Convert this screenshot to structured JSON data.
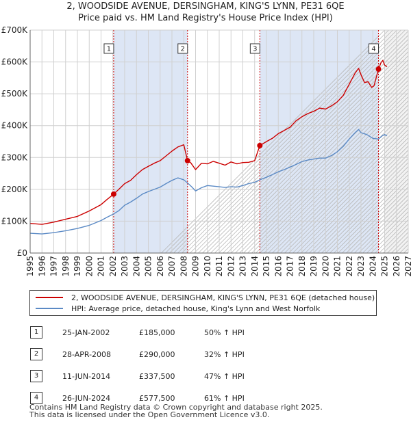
{
  "title_line1": "2, WOODSIDE AVENUE, DERSINGHAM, KING'S LYNN, PE31 6QE",
  "title_line2": "Price paid vs. HM Land Registry's House Price Index (HPI)",
  "legend": {
    "property": "2, WOODSIDE AVENUE, DERSINGHAM, KING'S LYNN, PE31 6QE (detached house)",
    "hpi": "HPI: Average price, detached house, King's Lynn and West Norfolk"
  },
  "transactions": [
    {
      "n": "1",
      "date": "25-JAN-2002",
      "price": "£185,000",
      "hpi": "50% ↑ HPI"
    },
    {
      "n": "2",
      "date": "28-APR-2008",
      "price": "£290,000",
      "hpi": "32% ↑ HPI"
    },
    {
      "n": "3",
      "date": "11-JUN-2014",
      "price": "£337,500",
      "hpi": "47% ↑ HPI"
    },
    {
      "n": "4",
      "date": "26-JUN-2024",
      "price": "£577,500",
      "hpi": "61% ↑ HPI"
    }
  ],
  "footer": {
    "line1": "Contains HM Land Registry data © Crown copyright and database right 2025.",
    "line2": "This data is licensed under the Open Government Licence v3.0."
  },
  "colors": {
    "property": "#cc0000",
    "hpi": "#5b8ac5",
    "shade": "#dde6f5",
    "grid": "#d0d0d0"
  },
  "chart_data": {
    "type": "line",
    "x_range": [
      1995,
      2027
    ],
    "y_range": [
      0,
      700000
    ],
    "x_ticks": [
      "1995",
      "1996",
      "1997",
      "1998",
      "1999",
      "2000",
      "2001",
      "2002",
      "2003",
      "2004",
      "2005",
      "2006",
      "2007",
      "2008",
      "2009",
      "2010",
      "2011",
      "2012",
      "2013",
      "2014",
      "2015",
      "2016",
      "2017",
      "2018",
      "2019",
      "2020",
      "2021",
      "2022",
      "2023",
      "2024",
      "2025",
      "2026",
      "2027"
    ],
    "y_ticks": [
      {
        "value": 0,
        "label": "£0"
      },
      {
        "value": 100000,
        "label": "£100K"
      },
      {
        "value": 200000,
        "label": "£200K"
      },
      {
        "value": 300000,
        "label": "£300K"
      },
      {
        "value": 400000,
        "label": "£400K"
      },
      {
        "value": 500000,
        "label": "£500K"
      },
      {
        "value": 600000,
        "label": "£600K"
      },
      {
        "value": 700000,
        "label": "£700K"
      }
    ],
    "forecast_from": 2025.0,
    "shaded_ranges": [
      [
        2002.07,
        2008.32
      ],
      [
        2014.44,
        2024.48
      ]
    ],
    "series": [
      {
        "name": "2, WOODSIDE AVENUE, DERSINGHAM, KING'S LYNN, PE31 6QE (detached house)",
        "color": "#cc0000",
        "points": [
          [
            1995.0,
            93000
          ],
          [
            1996.0,
            90000
          ],
          [
            1997.0,
            97000
          ],
          [
            1998.0,
            106000
          ],
          [
            1999.0,
            115000
          ],
          [
            2000.0,
            132000
          ],
          [
            2001.0,
            152000
          ],
          [
            2001.5,
            168000
          ],
          [
            2002.07,
            185000
          ],
          [
            2002.5,
            200000
          ],
          [
            2003.0,
            218000
          ],
          [
            2003.5,
            228000
          ],
          [
            2004.0,
            246000
          ],
          [
            2004.5,
            262000
          ],
          [
            2005.0,
            272000
          ],
          [
            2005.5,
            282000
          ],
          [
            2006.0,
            290000
          ],
          [
            2006.5,
            305000
          ],
          [
            2007.0,
            320000
          ],
          [
            2007.5,
            333000
          ],
          [
            2008.0,
            340000
          ],
          [
            2008.32,
            290000
          ],
          [
            2008.6,
            283000
          ],
          [
            2009.0,
            262000
          ],
          [
            2009.5,
            282000
          ],
          [
            2010.0,
            280000
          ],
          [
            2010.5,
            288000
          ],
          [
            2011.0,
            282000
          ],
          [
            2011.5,
            276000
          ],
          [
            2012.0,
            286000
          ],
          [
            2012.5,
            280000
          ],
          [
            2013.0,
            284000
          ],
          [
            2013.5,
            285000
          ],
          [
            2014.0,
            290000
          ],
          [
            2014.44,
            337500
          ],
          [
            2015.0,
            350000
          ],
          [
            2015.5,
            360000
          ],
          [
            2016.0,
            375000
          ],
          [
            2016.5,
            385000
          ],
          [
            2017.0,
            395000
          ],
          [
            2017.5,
            415000
          ],
          [
            2018.0,
            428000
          ],
          [
            2018.5,
            438000
          ],
          [
            2019.0,
            445000
          ],
          [
            2019.5,
            455000
          ],
          [
            2020.0,
            452000
          ],
          [
            2020.5,
            462000
          ],
          [
            2021.0,
            475000
          ],
          [
            2021.5,
            495000
          ],
          [
            2022.0,
            530000
          ],
          [
            2022.5,
            565000
          ],
          [
            2022.8,
            580000
          ],
          [
            2023.0,
            560000
          ],
          [
            2023.3,
            535000
          ],
          [
            2023.6,
            538000
          ],
          [
            2023.9,
            520000
          ],
          [
            2024.1,
            525000
          ],
          [
            2024.48,
            577500
          ],
          [
            2024.7,
            598000
          ],
          [
            2024.85,
            605000
          ],
          [
            2025.0,
            590000
          ],
          [
            2025.2,
            585000
          ]
        ]
      },
      {
        "name": "HPI: Average price, detached house, King's Lynn and West Norfolk",
        "color": "#5b8ac5",
        "points": [
          [
            1995.0,
            62000
          ],
          [
            1996.0,
            60000
          ],
          [
            1997.0,
            64000
          ],
          [
            1998.0,
            70000
          ],
          [
            1999.0,
            77000
          ],
          [
            2000.0,
            87000
          ],
          [
            2001.0,
            102000
          ],
          [
            2001.5,
            112000
          ],
          [
            2002.07,
            123000
          ],
          [
            2002.5,
            133000
          ],
          [
            2003.0,
            150000
          ],
          [
            2003.5,
            160000
          ],
          [
            2004.0,
            172000
          ],
          [
            2004.5,
            185000
          ],
          [
            2005.0,
            193000
          ],
          [
            2005.5,
            200000
          ],
          [
            2006.0,
            207000
          ],
          [
            2006.5,
            218000
          ],
          [
            2007.0,
            228000
          ],
          [
            2007.5,
            236000
          ],
          [
            2008.0,
            230000
          ],
          [
            2008.32,
            220000
          ],
          [
            2008.7,
            207000
          ],
          [
            2009.0,
            195000
          ],
          [
            2009.5,
            205000
          ],
          [
            2010.0,
            212000
          ],
          [
            2010.5,
            210000
          ],
          [
            2011.0,
            208000
          ],
          [
            2011.5,
            206000
          ],
          [
            2012.0,
            208000
          ],
          [
            2012.5,
            207000
          ],
          [
            2013.0,
            212000
          ],
          [
            2013.5,
            218000
          ],
          [
            2014.0,
            222000
          ],
          [
            2014.44,
            230000
          ],
          [
            2015.0,
            238000
          ],
          [
            2015.5,
            246000
          ],
          [
            2016.0,
            255000
          ],
          [
            2016.5,
            262000
          ],
          [
            2017.0,
            270000
          ],
          [
            2017.5,
            278000
          ],
          [
            2018.0,
            287000
          ],
          [
            2018.5,
            292000
          ],
          [
            2019.0,
            295000
          ],
          [
            2019.5,
            298000
          ],
          [
            2020.0,
            298000
          ],
          [
            2020.5,
            306000
          ],
          [
            2021.0,
            318000
          ],
          [
            2021.5,
            335000
          ],
          [
            2022.0,
            358000
          ],
          [
            2022.5,
            378000
          ],
          [
            2022.8,
            388000
          ],
          [
            2023.0,
            378000
          ],
          [
            2023.5,
            372000
          ],
          [
            2024.0,
            360000
          ],
          [
            2024.48,
            358000
          ],
          [
            2024.8,
            368000
          ],
          [
            2025.0,
            372000
          ],
          [
            2025.2,
            368000
          ]
        ]
      }
    ],
    "markers": [
      {
        "label": "1",
        "x": 2002.07,
        "y": 185000
      },
      {
        "label": "2",
        "x": 2008.32,
        "y": 290000
      },
      {
        "label": "3",
        "x": 2014.44,
        "y": 337500
      },
      {
        "label": "4",
        "x": 2024.48,
        "y": 577500
      }
    ]
  }
}
